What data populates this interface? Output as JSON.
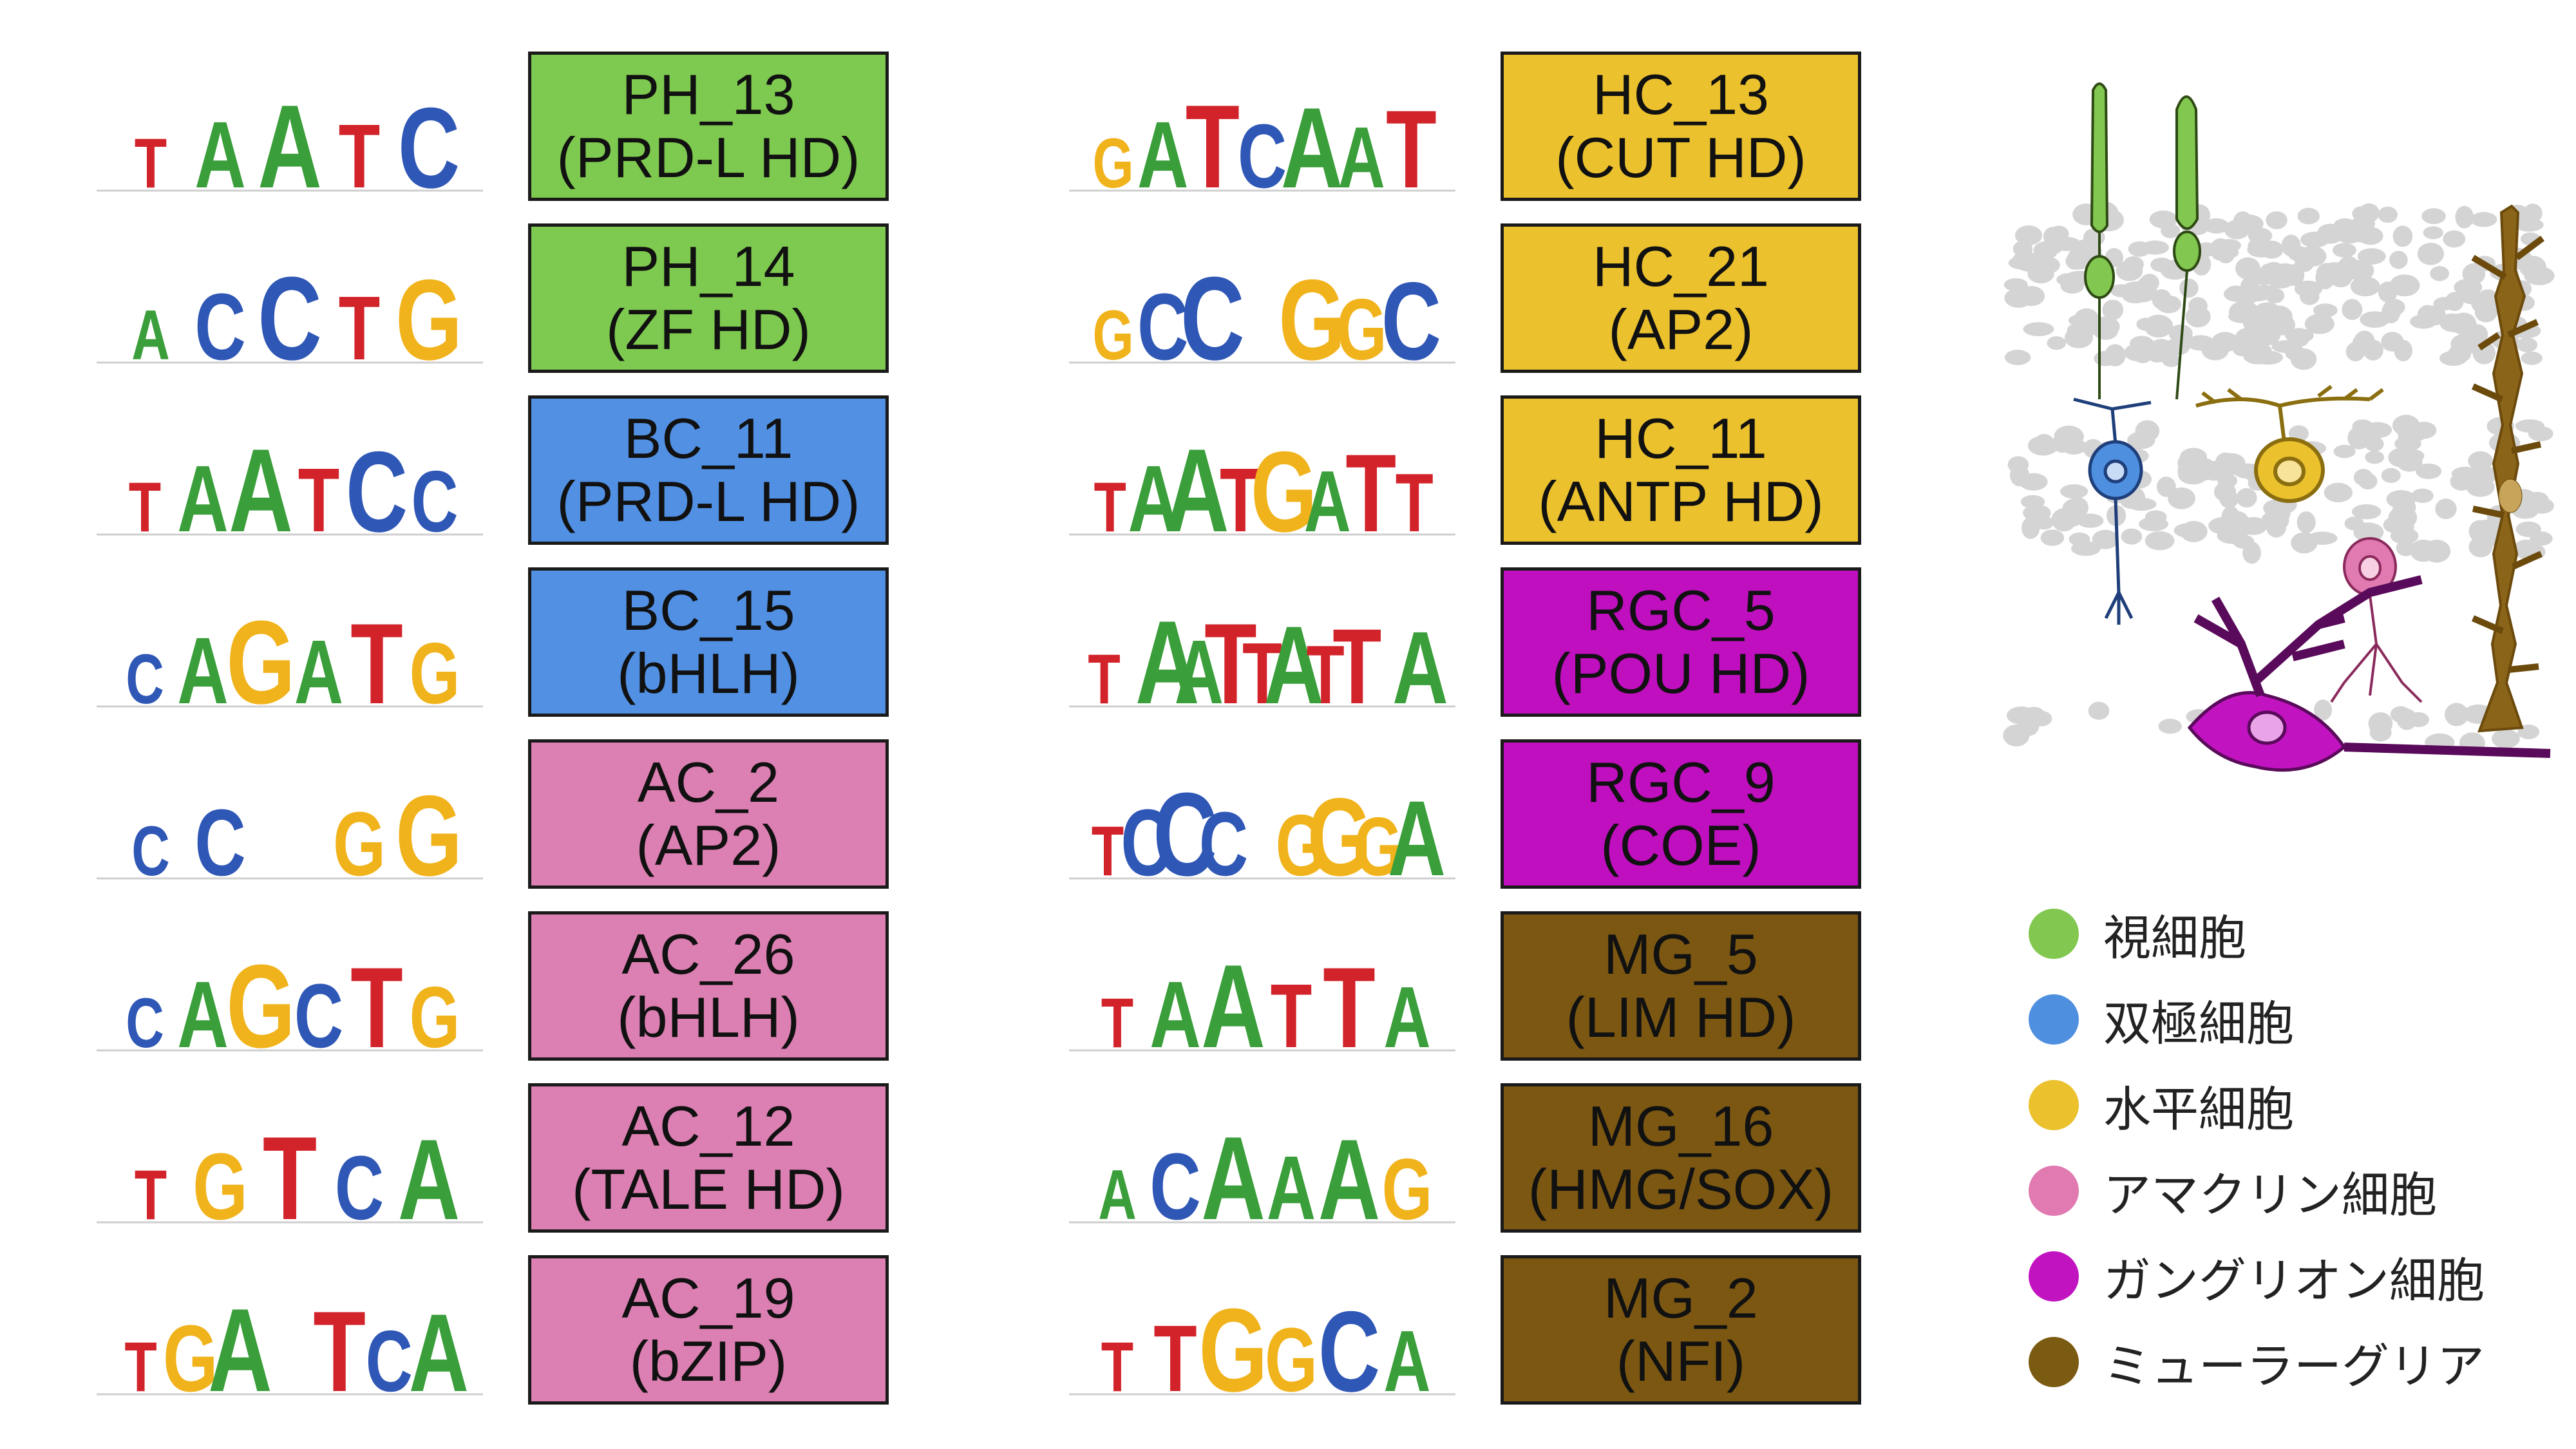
{
  "colors": {
    "A": "#3a9e3a",
    "C": "#2f57b6",
    "G": "#f1b31c",
    "T": "#d2232a",
    "photoreceptor": "#82c74f",
    "bipolar": "#4e8fe0",
    "horizontal": "#ebc12e",
    "amacrine": "#e07ab0",
    "ganglion": "#c213c1",
    "muller": "#7b5a12"
  },
  "left_column": [
    {
      "line1": "PH_13",
      "line2": "(PRD-L HD)",
      "color": "#7ec94f",
      "motif": "TAATC",
      "icon": "motif-logo"
    },
    {
      "line1": "PH_14",
      "line2": "(ZF HD)",
      "color": "#7ec94f",
      "motif": "ACCTG",
      "icon": "motif-logo"
    },
    {
      "line1": "BC_11",
      "line2": "(PRD-L HD)",
      "color": "#5190e3",
      "motif": "TAATCC",
      "icon": "motif-logo"
    },
    {
      "line1": "BC_15",
      "line2": "(bHLH)",
      "color": "#5190e3",
      "motif": "CAGATG",
      "icon": "motif-logo"
    },
    {
      "line1": "AC_2",
      "line2": "(AP2)",
      "color": "#dc7fb2",
      "motif": "CC GG",
      "icon": "motif-logo"
    },
    {
      "line1": "AC_26",
      "line2": "(bHLH)",
      "color": "#dc7fb2",
      "motif": "CAGCTG",
      "icon": "motif-logo"
    },
    {
      "line1": "AC_12",
      "line2": "(TALE HD)",
      "color": "#dc7fb2",
      "motif": "TGTCA",
      "icon": "motif-logo"
    },
    {
      "line1": "AC_19",
      "line2": "(bZIP)",
      "color": "#dc7fb2",
      "motif": "TGA TCA",
      "icon": "motif-logo"
    }
  ],
  "right_column": [
    {
      "line1": "HC_13",
      "line2": "(CUT HD)",
      "color": "#ebc12e",
      "motif": "GATCAAT",
      "icon": "motif-logo"
    },
    {
      "line1": "HC_21",
      "line2": "(AP2)",
      "color": "#ebc12e",
      "motif": "GCC GGC",
      "icon": "motif-logo"
    },
    {
      "line1": "HC_11",
      "line2": "(ANTP HD)",
      "color": "#ebc12e",
      "motif": "TAATGATT",
      "icon": "motif-logo"
    },
    {
      "line1": "RGC_5",
      "line2": "(POU HD)",
      "color": "#bf0fbe",
      "motif": "T AATTATT A",
      "icon": "motif-logo"
    },
    {
      "line1": "RGC_9",
      "line2": "(COE)",
      "color": "#bf0fbe",
      "motif": "TCCC GGGA",
      "icon": "motif-logo"
    },
    {
      "line1": "MG_5",
      "line2": "(LIM HD)",
      "color": "#7b5712",
      "motif": "TAATTA",
      "icon": "motif-logo"
    },
    {
      "line1": "MG_16",
      "line2": "(HMG/SOX)",
      "color": "#7b5712",
      "motif": "ACAAAG",
      "icon": "motif-logo"
    },
    {
      "line1": "MG_2",
      "line2": "(NFI)",
      "color": "#7b5712",
      "motif": "TTGGCA",
      "icon": "motif-logo"
    }
  ],
  "legend": [
    {
      "label": "視細胞",
      "color": "#82c74f"
    },
    {
      "label": "双極細胞",
      "color": "#4e8fe0"
    },
    {
      "label": "水平細胞",
      "color": "#ebc12e"
    },
    {
      "label": "アマクリン細胞",
      "color": "#e07ab0"
    },
    {
      "label": "ガングリオン細胞",
      "color": "#c213c1"
    },
    {
      "label": "ミューラーグリア",
      "color": "#7b5a12"
    }
  ],
  "illustration": {
    "icon": "retina-cell-types-diagram"
  }
}
